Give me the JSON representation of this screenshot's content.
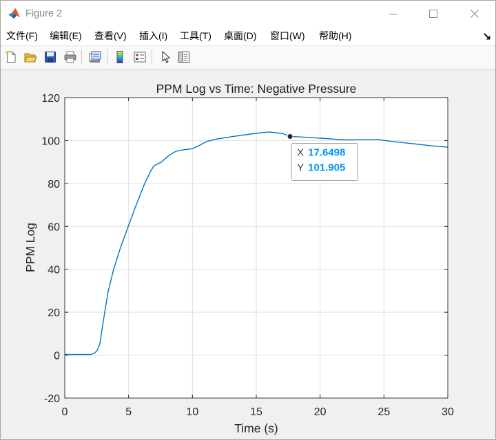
{
  "window": {
    "title": "Figure 2",
    "app_icon": "matlab-logo-icon",
    "controls": {
      "minimize": "minimize-icon",
      "maximize": "maximize-icon",
      "close": "close-icon"
    }
  },
  "menu": {
    "items": [
      {
        "label": "文件(F)"
      },
      {
        "label": "编辑(E)"
      },
      {
        "label": "查看(V)"
      },
      {
        "label": "插入(I)"
      },
      {
        "label": "工具(T)"
      },
      {
        "label": "桌面(D)"
      },
      {
        "label": "窗口(W)"
      },
      {
        "label": "帮助(H)"
      }
    ],
    "dock_icon": "dock-arrow-icon"
  },
  "toolbar": {
    "buttons": [
      {
        "icon": "new-figure-icon"
      },
      {
        "icon": "open-file-icon"
      },
      {
        "icon": "save-figure-icon"
      },
      {
        "icon": "print-figure-icon"
      },
      {
        "icon": "link-plot-icon"
      },
      {
        "icon": "insert-colorbar-icon"
      },
      {
        "icon": "insert-legend-icon"
      },
      {
        "icon": "edit-plot-icon"
      },
      {
        "icon": "property-inspector-icon"
      }
    ]
  },
  "chart_data": {
    "type": "line",
    "title": "PPM Log vs Time: Negative Pressure",
    "xlabel": "Time (s)",
    "ylabel": "PPM Log",
    "xlim": [
      0,
      30
    ],
    "ylim": [
      -20,
      120
    ],
    "xticks": [
      0,
      5,
      10,
      15,
      20,
      25,
      30
    ],
    "yticks": [
      -20,
      0,
      20,
      40,
      60,
      80,
      100,
      120
    ],
    "grid": true,
    "legend": "none",
    "x": [
      0,
      1,
      2,
      2.3,
      2.54,
      2.75,
      2.91,
      3.13,
      3.4,
      3.83,
      4.37,
      4.96,
      5.56,
      6.26,
      6.7,
      6.96,
      7.1,
      7.55,
      8.15,
      8.7,
      9.2,
      10,
      10.6,
      11.1,
      11.9,
      13.3,
      14.9,
      16,
      17.05,
      17.6498,
      18.7,
      20.3,
      21.9,
      23.5,
      24.6,
      25.7,
      27.3,
      28.65,
      30
    ],
    "series": [
      {
        "color": "#0072BD",
        "values": [
          0.3,
          0.3,
          0.3,
          0.8,
          2.1,
          5.3,
          11.7,
          20,
          29.7,
          40,
          50.2,
          59.8,
          69.4,
          80,
          85.4,
          88,
          88.6,
          89.9,
          93,
          95,
          95.6,
          96.2,
          97.9,
          99.5,
          100.7,
          102,
          103.3,
          104,
          103.3,
          101.905,
          101.6,
          101,
          100.3,
          100.4,
          100.4,
          99.5,
          98.5,
          97.6,
          96.9
        ]
      }
    ],
    "datatip": {
      "x_name": "X",
      "x": 17.6498,
      "y_name": "Y",
      "y": 101.905
    }
  },
  "colors": {
    "series": "#0072BD",
    "datatip_value": "#0096EF",
    "figure_background": "#F0F0F0",
    "axes_background": "#FFFFFF"
  }
}
